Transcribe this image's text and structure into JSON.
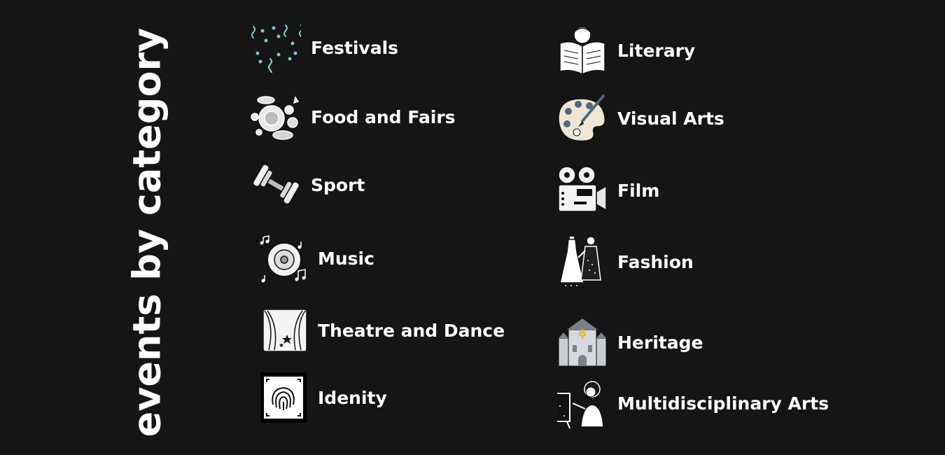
{
  "title": "events by category",
  "left_column": [
    {
      "label": "Festivals",
      "icon": "confetti-icon"
    },
    {
      "label": "Food and Fairs",
      "icon": "food-platter-icon"
    },
    {
      "label": "Sport",
      "icon": "dumbbell-icon"
    },
    {
      "label": "Music",
      "icon": "gong-music-icon"
    },
    {
      "label": "Theatre and Dance",
      "icon": "stage-curtain-icon"
    },
    {
      "label": "Idenity",
      "icon": "fingerprint-icon"
    }
  ],
  "right_column": [
    {
      "label": "Literary",
      "icon": "reading-book-icon"
    },
    {
      "label": "Visual Arts",
      "icon": "paint-palette-icon"
    },
    {
      "label": "Film",
      "icon": "film-projector-icon"
    },
    {
      "label": "Fashion",
      "icon": "dress-tailor-icon"
    },
    {
      "label": "Heritage",
      "icon": "synagogue-icon"
    },
    {
      "label": "Multidisciplinary Arts",
      "icon": "artist-easel-icon"
    }
  ],
  "colors": {
    "background": "#151515",
    "text": "#ffffff",
    "confetti": "#7ec8cf",
    "heritage_building": "#c9ccd1",
    "heritage_star": "#e8b93a"
  }
}
